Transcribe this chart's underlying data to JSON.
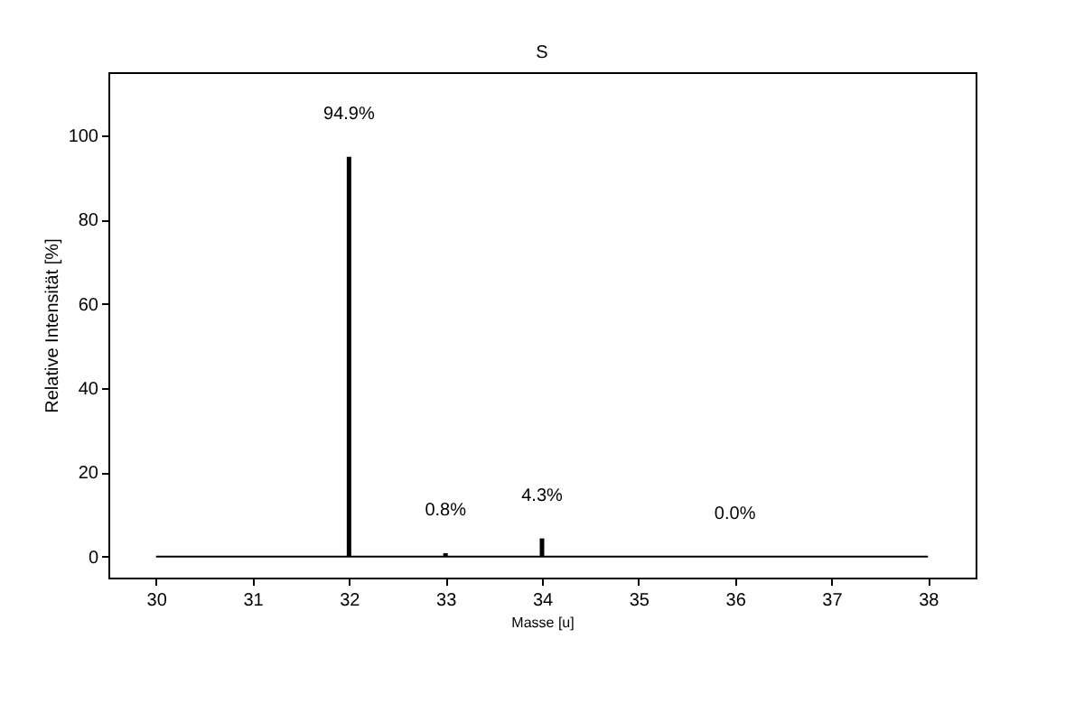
{
  "chart_data": {
    "type": "bar",
    "title": "S",
    "xlabel": "Masse [u]",
    "ylabel": "Relative Intensität [%]",
    "series": [
      {
        "color": "#000000",
        "x": [
          32,
          33,
          34,
          36
        ],
        "values": [
          94.9,
          0.8,
          4.3,
          0.0
        ],
        "value_labels": [
          "94.9%",
          "0.8%",
          "4.3%",
          "0.0%"
        ]
      },
      {
        "type": "line",
        "color": "#000000",
        "x": [
          30,
          38
        ],
        "values": [
          0,
          0
        ]
      }
    ],
    "xlim": [
      29.6,
      38.4
    ],
    "xticks": [
      30,
      31,
      32,
      33,
      34,
      35,
      36,
      37,
      38
    ],
    "ylim": [
      -5,
      115
    ],
    "yticks": [
      0,
      20,
      40,
      60,
      80,
      100
    ]
  }
}
